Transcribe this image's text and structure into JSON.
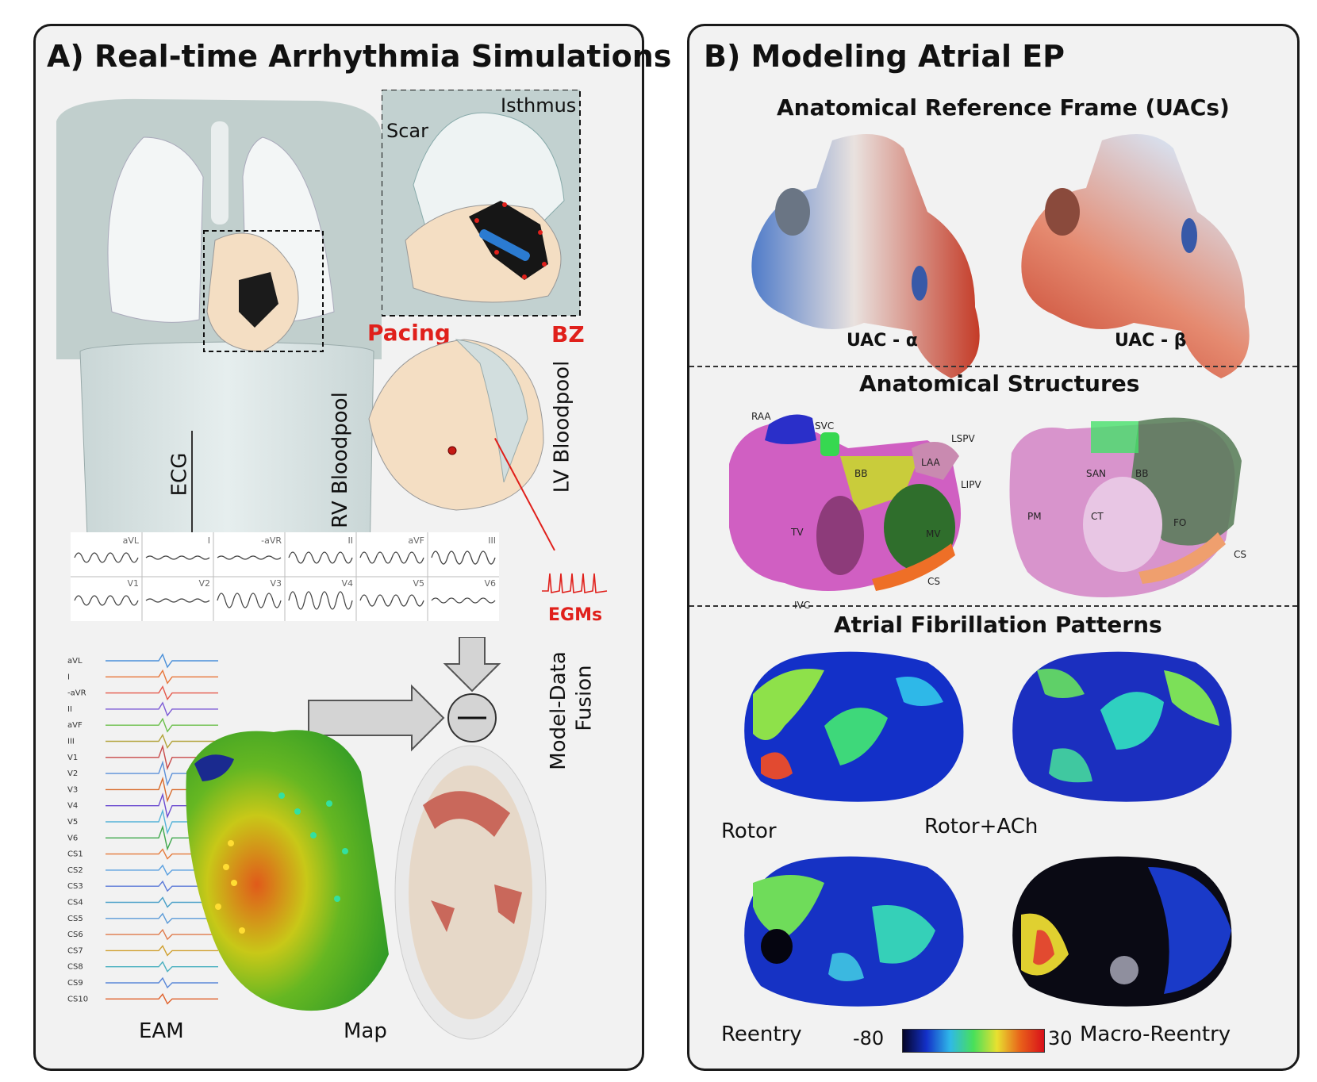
{
  "panel_a": {
    "title": "A) Real-time Arrhythmia Simulations",
    "labels": {
      "scar": "Scar",
      "isthmus": "Isthmus",
      "pacing": "Pacing",
      "bz": "BZ",
      "ecg": "ECG",
      "rv_bloodpool": "RV Bloodpool",
      "lv_bloodpool": "LV Bloodpool",
      "egms": "EGMs",
      "model_data_fusion_1": "Model-Data",
      "model_data_fusion_2": "Fusion",
      "eam": "EAM",
      "map": "Map"
    },
    "ecg_leads_top": [
      "aVL",
      "I",
      "-aVR",
      "II",
      "aVF",
      "III"
    ],
    "ecg_leads_bottom": [
      "V1",
      "V2",
      "V3",
      "V4",
      "V5",
      "V6"
    ],
    "eam_leads": [
      "aVL",
      "I",
      "-aVR",
      "II",
      "aVF",
      "III",
      "V1",
      "V2",
      "V3",
      "V4",
      "V5",
      "V6",
      "CS1",
      "CS2",
      "CS3",
      "CS4",
      "CS5",
      "CS6",
      "CS7",
      "CS8",
      "CS9",
      "CS10"
    ]
  },
  "panel_b": {
    "title": "B) Modeling Atrial EP",
    "section1": {
      "title": "Anatomical Reference Frame (UACs)",
      "label_alpha": "UAC - α",
      "label_beta": "UAC - β"
    },
    "section2": {
      "title": "Anatomical Structures",
      "left_labels": [
        "RAA",
        "SVC",
        "BB",
        "LAA",
        "LSPV",
        "LIPV",
        "TV",
        "MV",
        "CS",
        "IVC"
      ],
      "right_labels": [
        "SAN",
        "BB",
        "PM",
        "CT",
        "FO",
        "CS"
      ]
    },
    "section3": {
      "title": "Atrial Fibrillation Patterns",
      "patterns": [
        "Rotor",
        "Rotor+ACh",
        "Reentry",
        "Macro-Reentry"
      ],
      "colorbar_min": "-80",
      "colorbar_max": "30"
    }
  },
  "colors": {
    "accent_red": "#e0201b",
    "panel_bg": "#f2f2f2",
    "border": "#1a1a1a"
  }
}
